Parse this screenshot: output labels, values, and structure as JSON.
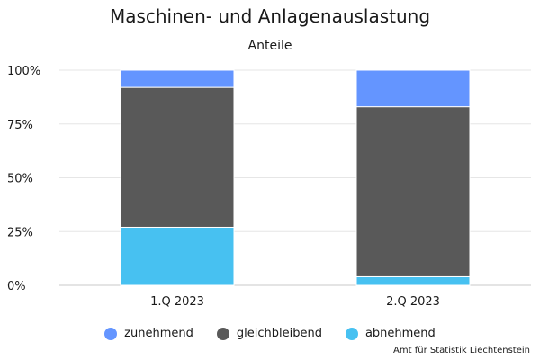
{
  "chart_data": {
    "type": "bar",
    "stacked": true,
    "title": "Maschinen- und Anlagenauslastung",
    "subtitle": "Anteile",
    "categories": [
      "1.Q 2023",
      "2.Q 2023"
    ],
    "series": [
      {
        "name": "zunehmend",
        "color": "#6495ff",
        "values": [
          8,
          17
        ]
      },
      {
        "name": "gleichbleibend",
        "color": "#595959",
        "values": [
          65,
          79
        ]
      },
      {
        "name": "abnehmend",
        "color": "#47c1f1",
        "values": [
          27,
          4
        ]
      }
    ],
    "ylim": [
      0,
      100
    ],
    "yticks": [
      "0%",
      "25%",
      "50%",
      "75%",
      "100%"
    ],
    "grid": true,
    "legend_position": "bottom",
    "source": "Amt für Statistik Liechtenstein"
  }
}
